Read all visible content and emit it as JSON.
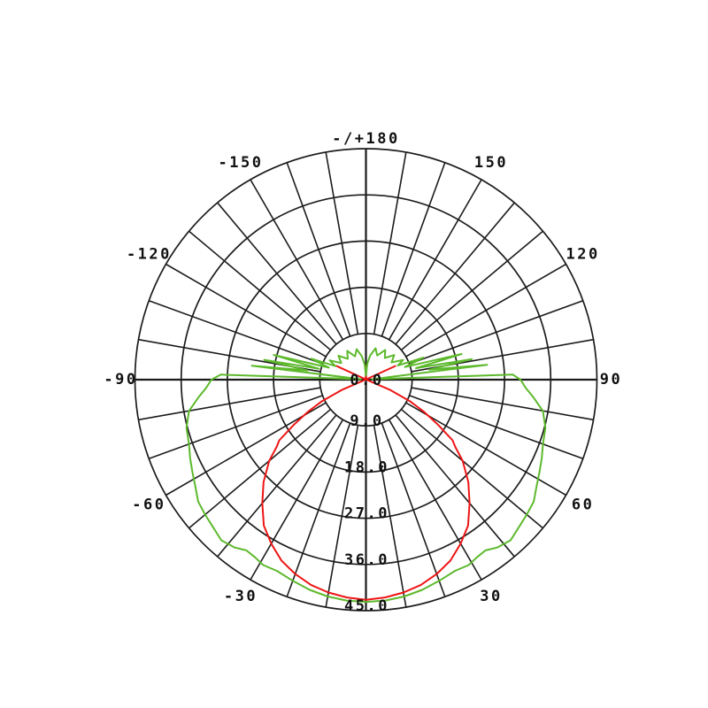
{
  "chart_data": {
    "type": "line",
    "subtype": "polar-intensity-distribution",
    "orientation": "0-degrees-at-bottom, positive angles right, negative angles left",
    "grid": true,
    "background_color": "#ffffff",
    "grid_color": "#1c1c1c",
    "label_color": "#111111",
    "radial_axis": {
      "min": 0,
      "max": 45,
      "ring_step": 9,
      "ticks": [
        {
          "value": 0,
          "label": "0.0"
        },
        {
          "value": 9,
          "label": "9.0"
        },
        {
          "value": 18,
          "label": "18.0"
        },
        {
          "value": 27,
          "label": "27.0"
        },
        {
          "value": 36,
          "label": "36.0"
        },
        {
          "value": 45,
          "label": "45.0"
        }
      ]
    },
    "angular_axis": {
      "spoke_step_deg": 10,
      "label_step_deg": 30,
      "labels": [
        {
          "deg": 180,
          "label": "-/+180"
        },
        {
          "deg": -150,
          "label": "-150"
        },
        {
          "deg": 150,
          "label": "150"
        },
        {
          "deg": -120,
          "label": "-120"
        },
        {
          "deg": 120,
          "label": "120"
        },
        {
          "deg": -90,
          "label": "-90"
        },
        {
          "deg": 90,
          "label": "90"
        },
        {
          "deg": -60,
          "label": "-60"
        },
        {
          "deg": 60,
          "label": "60"
        },
        {
          "deg": -30,
          "label": "-30"
        },
        {
          "deg": 30,
          "label": "30"
        }
      ]
    },
    "series": [
      {
        "name": "red-curve",
        "color": "#ee1515",
        "points": [
          [
            115,
            6.3
          ],
          [
            -70,
            0.5
          ],
          [
            -67,
            5
          ],
          [
            -64,
            9.5
          ],
          [
            -61,
            13
          ],
          [
            -58,
            16.5
          ],
          [
            -55,
            20.6
          ],
          [
            -53,
            21.8
          ],
          [
            -50,
            24.6
          ],
          [
            -45,
            28.2
          ],
          [
            -40,
            31.4
          ],
          [
            -35,
            34.7
          ],
          [
            -30,
            36.9
          ],
          [
            -25,
            38.9
          ],
          [
            -20,
            40.3
          ],
          [
            -15,
            41.4
          ],
          [
            -10,
            42.1
          ],
          [
            -5,
            42.6
          ],
          [
            0,
            42.9
          ],
          [
            5,
            42.6
          ],
          [
            10,
            42.1
          ],
          [
            15,
            41.4
          ],
          [
            20,
            40.3
          ],
          [
            25,
            38.9
          ],
          [
            30,
            36.9
          ],
          [
            35,
            34.7
          ],
          [
            40,
            31.4
          ],
          [
            45,
            28.2
          ],
          [
            50,
            24.6
          ],
          [
            53,
            21.8
          ],
          [
            55,
            20.6
          ],
          [
            58,
            16.5
          ],
          [
            61,
            13
          ],
          [
            64,
            9.5
          ],
          [
            67,
            5
          ],
          [
            70,
            0.5
          ],
          [
            -115,
            6.3
          ]
        ]
      },
      {
        "name": "red-curve-back-tick",
        "color": "#ee1515",
        "points": [
          [
            174,
            0.4
          ],
          [
            180,
            2.6
          ],
          [
            186,
            0.4
          ]
        ]
      },
      {
        "name": "green-curve",
        "color": "#5db92c",
        "points": [
          [
            180,
            0.8
          ],
          [
            -175,
            3.0
          ],
          [
            -170,
            4.6
          ],
          [
            -163,
            6.2
          ],
          [
            -155,
            5.0
          ],
          [
            -147,
            6.7
          ],
          [
            -139,
            5.4
          ],
          [
            -131,
            7.1
          ],
          [
            -124,
            5.8
          ],
          [
            -118,
            8.0
          ],
          [
            -114,
            6.5
          ],
          [
            -111,
            11.4
          ],
          [
            -108,
            7.6
          ],
          [
            -105,
            18.6
          ],
          [
            -103,
            9.4
          ],
          [
            -101,
            20.2
          ],
          [
            -99,
            11.5
          ],
          [
            -97,
            22.4
          ],
          [
            -94.5,
            1.0
          ],
          [
            -92,
            28.3
          ],
          [
            -90,
            30.1
          ],
          [
            -87,
            31.2
          ],
          [
            -84,
            32.8
          ],
          [
            -80,
            35.0
          ],
          [
            -75,
            36.2
          ],
          [
            -70,
            36.7
          ],
          [
            -66,
            37.5
          ],
          [
            -62,
            38.3
          ],
          [
            -58,
            39.2
          ],
          [
            -54,
            40.4
          ],
          [
            -50,
            40.9
          ],
          [
            -46,
            41.4
          ],
          [
            -42,
            42.1
          ],
          [
            -38,
            41.5
          ],
          [
            -35,
            40.6
          ],
          [
            -32,
            40.8
          ],
          [
            -29,
            41.3
          ],
          [
            -25,
            41.1
          ],
          [
            -20,
            41.7
          ],
          [
            -15,
            42.4
          ],
          [
            -10,
            42.9
          ],
          [
            -5,
            43.2
          ],
          [
            0,
            43.3
          ],
          [
            5,
            43.2
          ],
          [
            10,
            42.9
          ],
          [
            15,
            42.4
          ],
          [
            20,
            41.7
          ],
          [
            25,
            41.1
          ],
          [
            29,
            41.3
          ],
          [
            32,
            40.8
          ],
          [
            35,
            40.6
          ],
          [
            38,
            41.5
          ],
          [
            42,
            42.1
          ],
          [
            46,
            41.4
          ],
          [
            50,
            40.9
          ],
          [
            54,
            40.4
          ],
          [
            58,
            39.2
          ],
          [
            62,
            38.3
          ],
          [
            66,
            37.5
          ],
          [
            70,
            36.7
          ],
          [
            75,
            36.2
          ],
          [
            80,
            35.0
          ],
          [
            84,
            32.8
          ],
          [
            87,
            31.2
          ],
          [
            90,
            30.1
          ],
          [
            92,
            28.6
          ],
          [
            94.5,
            1.2
          ],
          [
            97,
            23.8
          ],
          [
            99,
            12.5
          ],
          [
            101,
            21.0
          ],
          [
            103,
            10.0
          ],
          [
            105,
            19.3
          ],
          [
            108,
            8.0
          ],
          [
            111,
            12.0
          ],
          [
            114,
            6.8
          ],
          [
            118,
            8.2
          ],
          [
            124,
            6.0
          ],
          [
            131,
            7.3
          ],
          [
            139,
            5.6
          ],
          [
            147,
            6.9
          ],
          [
            155,
            5.2
          ],
          [
            163,
            6.4
          ],
          [
            170,
            4.8
          ],
          [
            175,
            3.2
          ],
          [
            180,
            0.8
          ]
        ]
      }
    ]
  }
}
